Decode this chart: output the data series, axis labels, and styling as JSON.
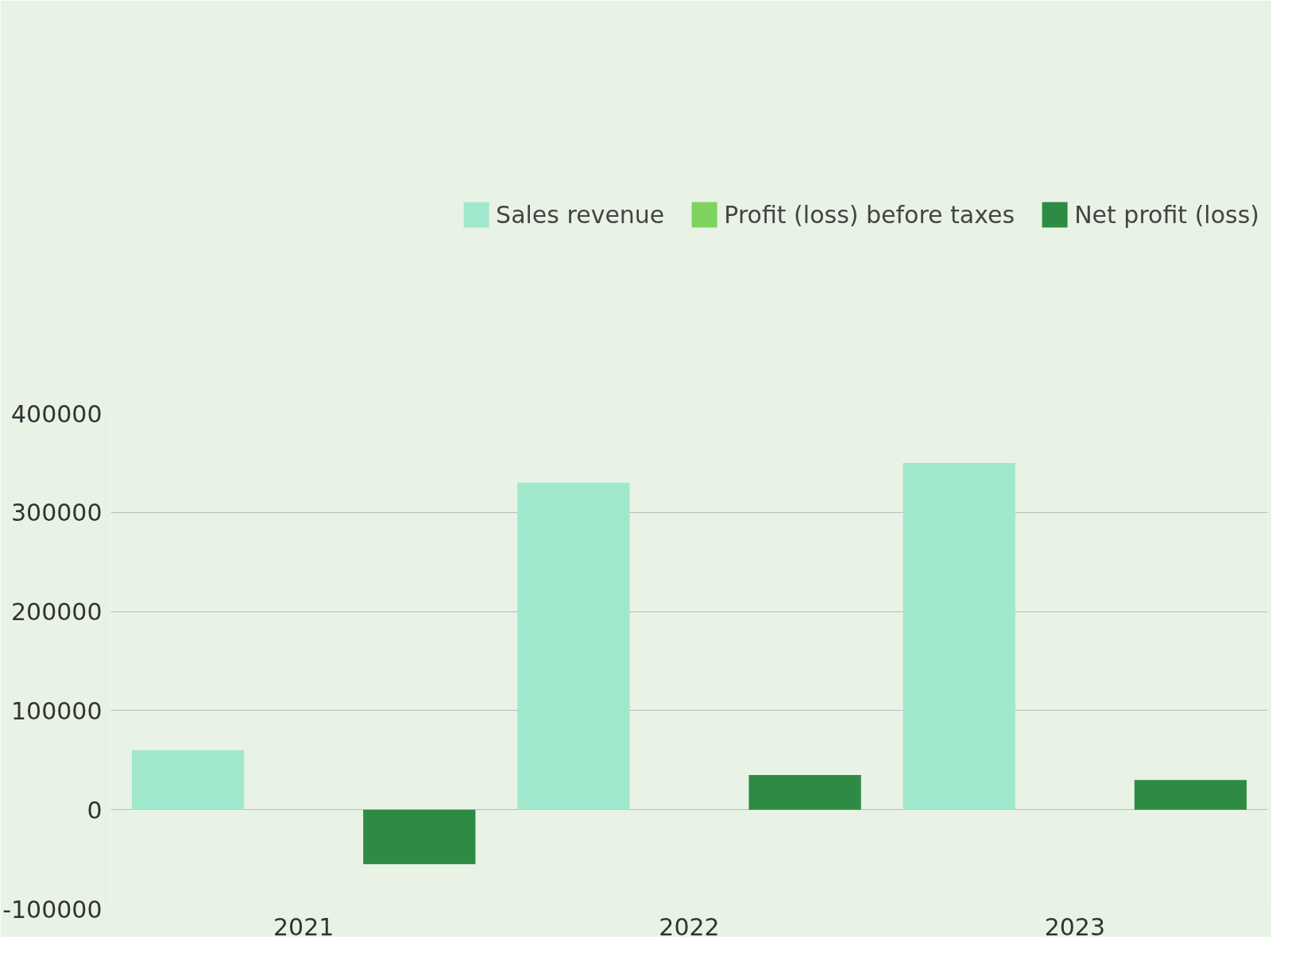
{
  "chart_data": {
    "type": "bar",
    "categories": [
      "2021",
      "2022",
      "2023"
    ],
    "series": [
      {
        "name": "Sales revenue",
        "color": "#a0e8cc",
        "values": [
          60000,
          330000,
          350000
        ]
      },
      {
        "name": "Profit (loss) before taxes",
        "color": "#7dd35e",
        "values": [
          null,
          null,
          null
        ]
      },
      {
        "name": "Net profit (loss)",
        "color": "#2e8b44",
        "values": [
          -55000,
          35000,
          30000
        ]
      }
    ],
    "ylim": [
      -100000,
      400000
    ],
    "yticks": [
      -100000,
      0,
      100000,
      200000,
      300000,
      400000
    ],
    "grid": "y",
    "legend": "top"
  }
}
